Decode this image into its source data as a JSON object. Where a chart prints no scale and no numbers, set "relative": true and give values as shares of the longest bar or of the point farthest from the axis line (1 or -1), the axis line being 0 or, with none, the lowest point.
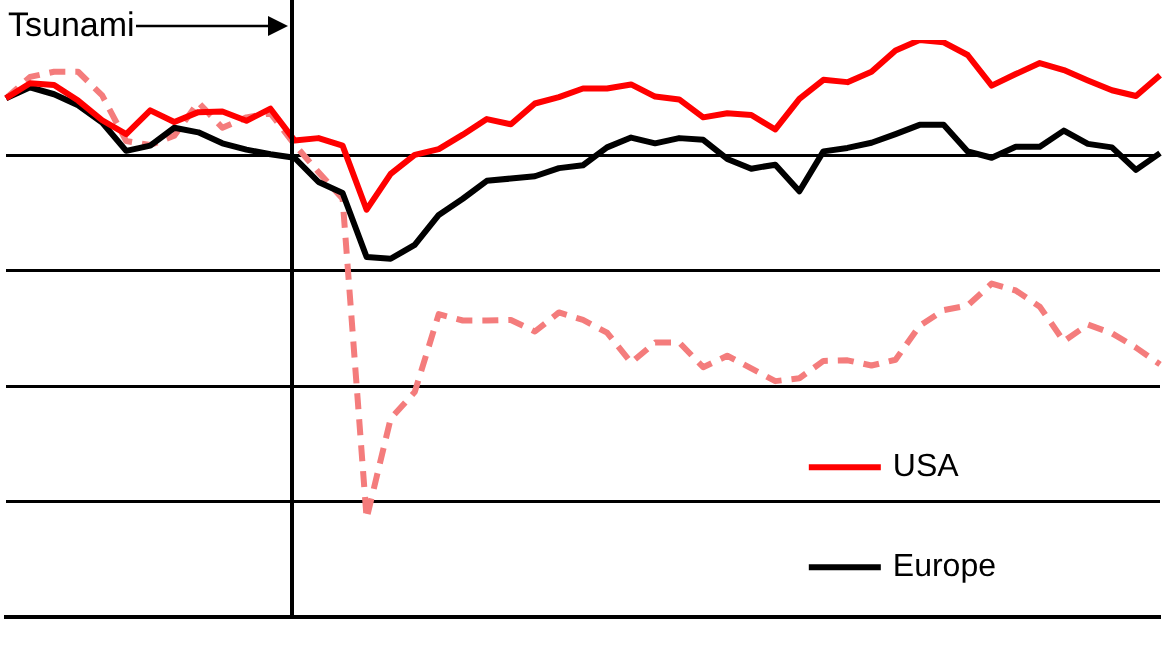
{
  "chart_data": {
    "type": "line",
    "relative": true,
    "grid": "y",
    "legend": "bottom right",
    "annotations": [
      "Tsunami"
    ],
    "categories": [
      null,
      null,
      null,
      null,
      null,
      null,
      null,
      null,
      null,
      null,
      null,
      null,
      null,
      null,
      null,
      null,
      null,
      null,
      null,
      null,
      null,
      null,
      null,
      null,
      null,
      null,
      null,
      null,
      null,
      null,
      null,
      null,
      null,
      null,
      null,
      null,
      null,
      null,
      null,
      null,
      null,
      null,
      null,
      null,
      null,
      null,
      null,
      null,
      null
    ],
    "series": [
      {
        "name": "USA",
        "color": "#ff0000",
        "line_style": "solid",
        "values": [
          0.899,
          0.925,
          0.922,
          0.895,
          0.861,
          0.837,
          0.878,
          0.858,
          0.875,
          0.876,
          0.86,
          0.881,
          0.826,
          0.83,
          0.817,
          0.706,
          0.768,
          0.801,
          0.811,
          0.836,
          0.863,
          0.854,
          0.89,
          0.901,
          0.916,
          0.916,
          0.923,
          0.902,
          0.897,
          0.866,
          0.873,
          0.87,
          0.845,
          0.898,
          0.931,
          0.927,
          0.945,
          0.982,
          1,
          0.996,
          0.974,
          0.921,
          0.941,
          0.96,
          0.948,
          0.93,
          0.913,
          0.903,
          0.939
        ]
      },
      {
        "name": "Europe",
        "color": "#000000",
        "line_style": "solid",
        "values": [
          0.899,
          0.918,
          0.906,
          0.887,
          0.857,
          0.808,
          0.817,
          0.848,
          0.84,
          0.821,
          0.81,
          0.802,
          0.796,
          0.754,
          0.735,
          0.624,
          0.621,
          0.645,
          0.697,
          0.725,
          0.756,
          0.76,
          0.764,
          0.778,
          0.783,
          0.814,
          0.831,
          0.821,
          0.83,
          0.827,
          0.794,
          0.777,
          0.784,
          0.738,
          0.807,
          0.813,
          0.822,
          0.837,
          0.853,
          0.853,
          0.807,
          0.796,
          0.815,
          0.815,
          0.843,
          0.82,
          0.814,
          0.775,
          0.804
        ]
      },
      {
        "color": "#f47c7c",
        "line_style": "dashed",
        "values": [
          0.899,
          0.936,
          0.945,
          0.945,
          0.904,
          0.825,
          0.818,
          0.834,
          0.892,
          0.848,
          0.866,
          0.873,
          0.819,
          0.771,
          0.725,
          0.171,
          0.344,
          0.39,
          0.525,
          0.514,
          0.514,
          0.515,
          0.495,
          0.528,
          0.515,
          0.493,
          0.441,
          0.476,
          0.476,
          0.433,
          0.453,
          0.431,
          0.409,
          0.414,
          0.444,
          0.445,
          0.436,
          0.446,
          0.505,
          0.532,
          0.54,
          0.578,
          0.566,
          0.538,
          0.478,
          0.507,
          0.492,
          0.467,
          0.438
        ]
      }
    ]
  }
}
